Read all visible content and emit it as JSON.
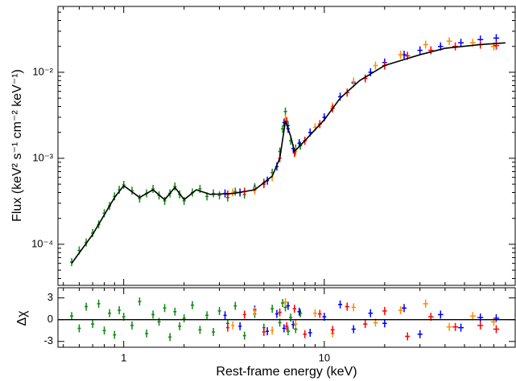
{
  "chart_data": [
    {
      "type": "scatter",
      "ylabel": "Flux (keV² s⁻¹ cm⁻² keV⁻¹)",
      "xscale": "log",
      "yscale": "log",
      "xlim": [
        0.47,
        89.5
      ],
      "ylim": [
        3.33e-05,
        0.0583
      ],
      "xticks": [
        1,
        10
      ],
      "yticks": [
        {
          "value": 0.0001,
          "label": "10⁻⁴"
        },
        {
          "value": 0.001,
          "label": "10⁻³"
        },
        {
          "value": 0.01,
          "label": "10⁻²"
        }
      ],
      "series": [
        {
          "color": "#118811",
          "x": [
            0.55,
            0.6,
            0.65,
            0.7,
            0.75,
            0.8,
            0.85,
            0.9,
            0.95,
            1.0,
            1.1,
            1.2,
            1.3,
            1.4,
            1.5,
            1.6,
            1.7,
            1.8,
            1.9,
            2.0,
            2.2,
            2.4,
            2.6,
            2.8,
            3.0,
            3.3,
            3.6,
            4.0,
            4.5,
            5.0,
            5.5,
            6.0,
            6.2,
            6.4,
            6.6,
            6.8,
            7.2,
            7.6
          ],
          "values": [
            6.2e-05,
            8.5e-05,
            0.000105,
            0.000135,
            0.00017,
            0.00023,
            0.00028,
            0.00036,
            0.00043,
            0.00049,
            0.00042,
            0.00034,
            0.00039,
            0.00044,
            0.00037,
            0.00032,
            0.00039,
            0.00047,
            0.00038,
            0.00032,
            0.0004,
            0.00044,
            0.00036,
            0.00039,
            0.00037,
            0.00035,
            0.00041,
            0.00038,
            0.00046,
            0.00052,
            0.00068,
            0.0012,
            0.0022,
            0.0035,
            0.0024,
            0.0016,
            0.0013,
            0.0014
          ]
        },
        {
          "color": "#0000ff",
          "x": [
            3.2,
            3.8,
            4.5,
            5.2,
            5.8,
            6.3,
            6.6,
            7.0,
            7.5,
            8.5,
            10,
            12,
            14,
            17,
            20,
            25,
            30,
            38,
            48,
            60,
            72
          ],
          "values": [
            0.00039,
            0.0004,
            0.00044,
            0.00055,
            0.0008,
            0.0026,
            0.0022,
            0.0013,
            0.0015,
            0.002,
            0.003,
            0.0052,
            0.0075,
            0.01,
            0.013,
            0.016,
            0.018,
            0.02,
            0.022,
            0.024,
            0.025
          ]
        },
        {
          "color": "#ff8c00",
          "x": [
            3.5,
            4.5,
            5.5,
            6.4,
            7.2,
            9,
            11,
            14,
            18,
            24,
            32,
            42,
            55,
            70
          ],
          "values": [
            0.0004,
            0.00042,
            0.0006,
            0.0029,
            0.0012,
            0.0023,
            0.004,
            0.0078,
            0.012,
            0.016,
            0.021,
            0.023,
            0.022,
            0.02
          ]
        },
        {
          "color": "#ff0000",
          "x": [
            3.3,
            4.0,
            5.0,
            6.0,
            6.5,
            7.1,
            8,
            9.5,
            11,
            13,
            16,
            20,
            26,
            34,
            45,
            60,
            72
          ],
          "values": [
            0.00038,
            0.00041,
            0.0005,
            0.001,
            0.0027,
            0.00115,
            0.0016,
            0.0025,
            0.0038,
            0.0058,
            0.0085,
            0.012,
            0.0155,
            0.018,
            0.02,
            0.021,
            0.0205
          ]
        }
      ],
      "model": {
        "color": "#000000",
        "x": [
          0.55,
          0.7,
          0.8,
          0.9,
          1.0,
          1.2,
          1.4,
          1.6,
          1.8,
          2.0,
          2.3,
          2.7,
          3.5,
          4.5,
          5.5,
          6.0,
          6.4,
          6.8,
          7.1,
          8,
          10,
          12,
          15,
          20,
          30,
          40,
          60,
          80
        ],
        "values": [
          6e-05,
          0.00013,
          0.00022,
          0.00035,
          0.00048,
          0.00035,
          0.00043,
          0.00033,
          0.00046,
          0.00033,
          0.00043,
          0.00038,
          0.00039,
          0.00043,
          0.00062,
          0.001,
          0.0027,
          0.0018,
          0.0012,
          0.0016,
          0.0028,
          0.005,
          0.008,
          0.012,
          0.016,
          0.019,
          0.021,
          0.022
        ]
      }
    },
    {
      "type": "scatter",
      "xlabel": "Rest-frame energy (keV)",
      "ylabel": "Δχ",
      "xscale": "log",
      "xlim": [
        0.47,
        89.5
      ],
      "ylim": [
        -3.8,
        4.4
      ],
      "xticks": [
        1,
        10
      ],
      "yticks": [
        -3,
        0,
        3
      ],
      "reference_line": 0,
      "series": [
        {
          "color": "#118811",
          "x": [
            0.55,
            0.6,
            0.65,
            0.7,
            0.75,
            0.8,
            0.85,
            0.9,
            0.95,
            1.0,
            1.1,
            1.2,
            1.3,
            1.4,
            1.5,
            1.6,
            1.7,
            1.8,
            1.9,
            2.0,
            2.2,
            2.4,
            2.6,
            2.8,
            3.0,
            3.3,
            3.6,
            4.0,
            4.5,
            5.0,
            5.5,
            6.0,
            6.2,
            6.4,
            6.6,
            6.8,
            7.2,
            7.6
          ],
          "values": [
            0.5,
            -1.2,
            1.8,
            -0.6,
            2.2,
            -1.5,
            0.9,
            -2.1,
            1.3,
            0.4,
            -0.8,
            2.5,
            -1.9,
            0.7,
            -0.3,
            1.6,
            -2.4,
            1.1,
            -0.9,
            0.2,
            2.0,
            -1.4,
            0.6,
            -1.7,
            1.2,
            -0.5,
            1.9,
            -2.2,
            0.8,
            -1.1,
            1.5,
            -0.4,
            2.3,
            1.7,
            -1.6,
            0.3,
            -1.3,
            0.9
          ]
        },
        {
          "color": "#0000ff",
          "x": [
            3.2,
            3.8,
            4.5,
            5.2,
            5.8,
            6.3,
            6.6,
            7.0,
            7.5,
            8.5,
            10,
            12,
            14,
            17,
            20,
            25,
            30,
            38,
            48,
            60,
            72
          ],
          "values": [
            0.6,
            -0.9,
            1.4,
            -1.6,
            0.8,
            -1.2,
            1.9,
            -0.7,
            1.1,
            -1.8,
            0.4,
            2.1,
            -1.3,
            0.9,
            -0.5,
            1.6,
            -2.0,
            0.7,
            -1.1,
            0.3,
            0.2
          ]
        },
        {
          "color": "#ff8c00",
          "x": [
            3.5,
            4.5,
            5.5,
            6.4,
            7.2,
            9,
            11,
            14,
            18,
            24,
            32,
            42,
            55,
            70
          ],
          "values": [
            -0.8,
            1.2,
            -1.5,
            2.4,
            -0.6,
            0.9,
            -1.9,
            1.7,
            -0.4,
            1.3,
            2.2,
            -1.0,
            0.5,
            -0.3
          ]
        },
        {
          "color": "#ff0000",
          "x": [
            3.3,
            4.0,
            5.0,
            6.0,
            6.5,
            7.1,
            8,
            9.5,
            11,
            13,
            16,
            20,
            26,
            34,
            45,
            60,
            72
          ],
          "values": [
            -1.1,
            0.7,
            -1.7,
            1.0,
            -0.9,
            1.5,
            -2.0,
            0.8,
            -1.4,
            1.8,
            -0.6,
            1.2,
            -2.3,
            0.4,
            -1.0,
            -0.8,
            -1.3
          ]
        }
      ]
    }
  ]
}
